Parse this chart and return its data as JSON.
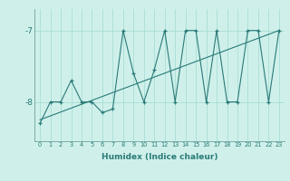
{
  "x": [
    0,
    1,
    2,
    3,
    4,
    5,
    6,
    7,
    8,
    9,
    10,
    11,
    12,
    13,
    14,
    15,
    16,
    17,
    18,
    19,
    20,
    21,
    22,
    23
  ],
  "y": [
    -8.3,
    -8.0,
    -8.0,
    -7.7,
    -8.0,
    -8.0,
    -8.15,
    -8.1,
    -7.0,
    -7.6,
    -8.0,
    -7.55,
    -7.0,
    -8.0,
    -7.0,
    -7.0,
    -8.0,
    -7.0,
    -8.0,
    -8.0,
    -7.0,
    -7.0,
    -8.0,
    -7.0
  ],
  "trend_x": [
    0,
    23
  ],
  "trend_y": [
    -8.25,
    -7.0
  ],
  "xlabel": "Humidex (Indice chaleur)",
  "ylim": [
    -8.55,
    -6.7
  ],
  "xlim": [
    -0.5,
    23.5
  ],
  "yticks": [
    -8,
    -7
  ],
  "ytick_labels": [
    "-8",
    "-7"
  ],
  "xticks": [
    0,
    1,
    2,
    3,
    4,
    5,
    6,
    7,
    8,
    9,
    10,
    11,
    12,
    13,
    14,
    15,
    16,
    17,
    18,
    19,
    20,
    21,
    22,
    23
  ],
  "line_color": "#2a7a78",
  "bg_color": "#cff0ea",
  "grid_color": "#a8ddd6",
  "spine_color": "#7aabaa"
}
